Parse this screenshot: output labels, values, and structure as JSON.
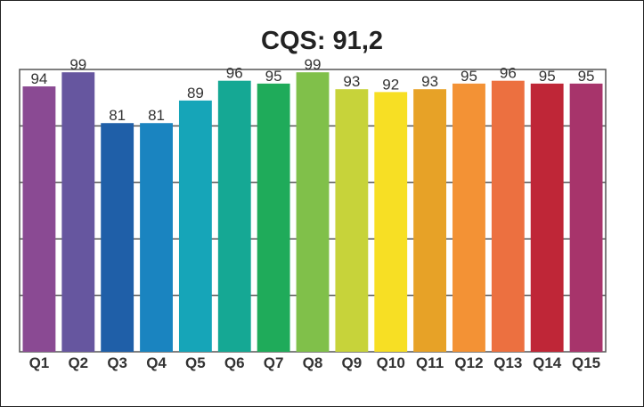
{
  "chart_data": {
    "type": "bar",
    "title": "CQS: 91,2",
    "xlabel": "",
    "ylabel": "",
    "categories": [
      "Q1",
      "Q2",
      "Q3",
      "Q4",
      "Q5",
      "Q6",
      "Q7",
      "Q8",
      "Q9",
      "Q10",
      "Q11",
      "Q12",
      "Q13",
      "Q14",
      "Q15"
    ],
    "values": [
      94,
      99,
      81,
      81,
      89,
      96,
      95,
      99,
      93,
      92,
      93,
      95,
      96,
      95,
      95
    ],
    "colors": [
      "#8a4a93",
      "#66569f",
      "#1f5fa8",
      "#1a84c0",
      "#16a5b8",
      "#15a894",
      "#1fab5a",
      "#80c04a",
      "#c7d33a",
      "#f7df24",
      "#e7a227",
      "#f39235",
      "#ec7040",
      "#bf2637",
      "#a7346b"
    ],
    "ylim": [
      0,
      100
    ],
    "grid": true,
    "legend": "none"
  }
}
